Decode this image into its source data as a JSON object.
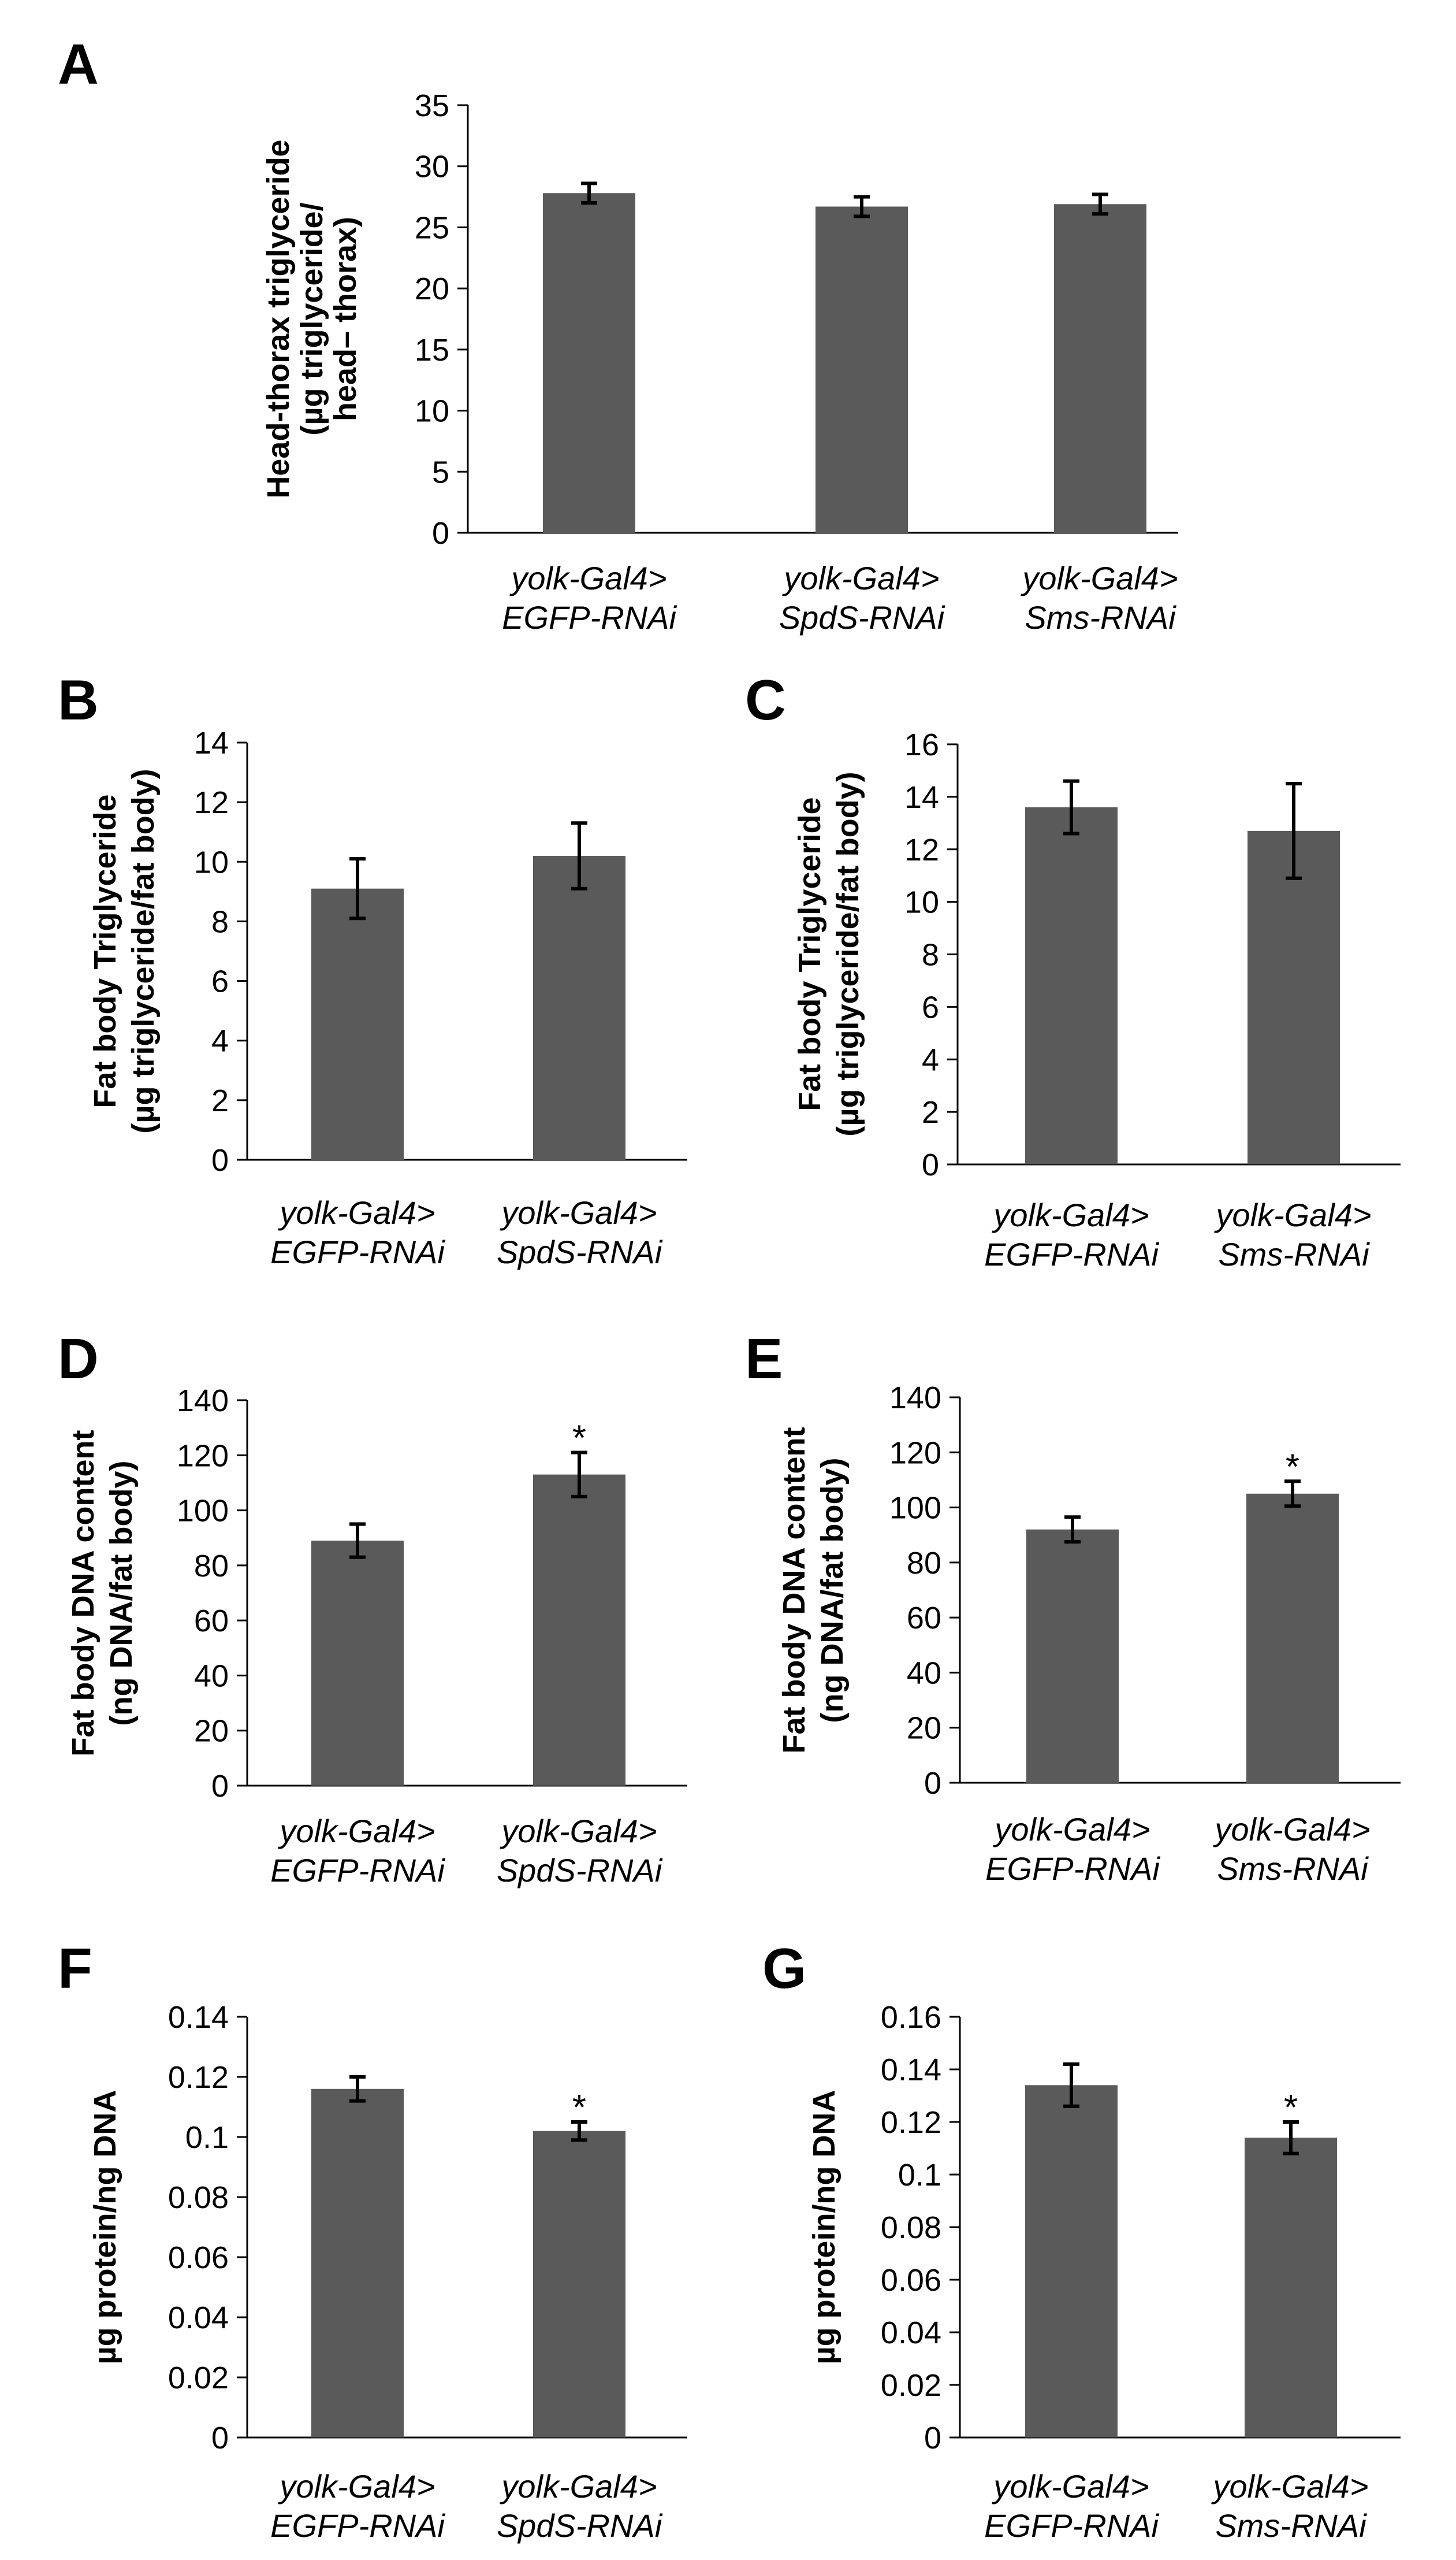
{
  "colors": {
    "bar": "#5a5a5a",
    "axis": "#000000",
    "background": "#ffffff"
  },
  "chart_data": [
    {
      "panel": "A",
      "type": "bar",
      "ylabel": [
        "Head-thorax triglyceride",
        "(µg triglyceride/",
        "head– thorax)"
      ],
      "ylim": [
        0,
        35
      ],
      "yticks": [
        "0",
        "5",
        "10",
        "15",
        "20",
        "25",
        "30",
        "35"
      ],
      "categories": [
        [
          "yolk-Gal4>",
          "EGFP-RNAi"
        ],
        [
          "yolk-Gal4>",
          "SpdS-RNAi"
        ],
        [
          "yolk-Gal4>",
          "Sms-RNAi"
        ]
      ],
      "values": [
        27.8,
        26.7,
        26.9
      ],
      "errors": [
        0.8,
        0.8,
        0.8
      ],
      "annotations": [
        "",
        "",
        ""
      ]
    },
    {
      "panel": "B",
      "type": "bar",
      "ylabel": [
        "Fat body Triglyceride",
        "(µg triglyceride/fat body)"
      ],
      "ylim": [
        0,
        14
      ],
      "yticks": [
        "0",
        "2",
        "4",
        "6",
        "8",
        "10",
        "12",
        "14"
      ],
      "categories": [
        [
          "yolk-Gal4>",
          "EGFP-RNAi"
        ],
        [
          "yolk-Gal4>",
          "SpdS-RNAi"
        ]
      ],
      "values": [
        9.1,
        10.2
      ],
      "errors": [
        1.0,
        1.1
      ],
      "annotations": [
        "",
        ""
      ]
    },
    {
      "panel": "C",
      "type": "bar",
      "ylabel": [
        "Fat body Triglyceride",
        "(µg triglyceride/fat body)"
      ],
      "ylim": [
        0,
        16
      ],
      "yticks": [
        "0",
        "2",
        "4",
        "6",
        "8",
        "10",
        "12",
        "14",
        "16"
      ],
      "categories": [
        [
          "yolk-Gal4>",
          "EGFP-RNAi"
        ],
        [
          "yolk-Gal4>",
          "Sms-RNAi"
        ]
      ],
      "values": [
        13.6,
        12.7
      ],
      "errors": [
        1.0,
        1.8
      ],
      "annotations": [
        "",
        ""
      ]
    },
    {
      "panel": "D",
      "type": "bar",
      "ylabel": [
        "Fat body DNA content",
        "(ng DNA/fat body)"
      ],
      "ylim": [
        0,
        140
      ],
      "yticks": [
        "0",
        "20",
        "40",
        "60",
        "80",
        "100",
        "120",
        "140"
      ],
      "categories": [
        [
          "yolk-Gal4>",
          "EGFP-RNAi"
        ],
        [
          "yolk-Gal4>",
          "SpdS-RNAi"
        ]
      ],
      "values": [
        89,
        113
      ],
      "errors": [
        6,
        8
      ],
      "annotations": [
        "",
        "*"
      ]
    },
    {
      "panel": "E",
      "type": "bar",
      "ylabel": [
        "Fat body DNA content",
        "(ng DNA/fat body)"
      ],
      "ylim": [
        0,
        140
      ],
      "yticks": [
        "0",
        "20",
        "40",
        "60",
        "80",
        "100",
        "120",
        "140"
      ],
      "categories": [
        [
          "yolk-Gal4>",
          "EGFP-RNAi"
        ],
        [
          "yolk-Gal4>",
          "Sms-RNAi"
        ]
      ],
      "values": [
        92,
        105
      ],
      "errors": [
        4.5,
        4.5
      ],
      "annotations": [
        "",
        "*"
      ]
    },
    {
      "panel": "F",
      "type": "bar",
      "ylabel": [
        "µg protein/ng DNA"
      ],
      "ylim": [
        0,
        0.14
      ],
      "yticks": [
        "0",
        "0.02",
        "0.04",
        "0.06",
        "0.08",
        "0.1",
        "0.12",
        "0.14"
      ],
      "categories": [
        [
          "yolk-Gal4>",
          "EGFP-RNAi"
        ],
        [
          "yolk-Gal4>",
          "SpdS-RNAi"
        ]
      ],
      "values": [
        0.116,
        0.102
      ],
      "errors": [
        0.004,
        0.003
      ],
      "annotations": [
        "",
        "*"
      ]
    },
    {
      "panel": "G",
      "type": "bar",
      "ylabel": [
        "µg protein/ng DNA"
      ],
      "ylim": [
        0,
        0.16
      ],
      "yticks": [
        "0",
        "0.02",
        "0.04",
        "0.06",
        "0.08",
        "0.1",
        "0.12",
        "0.14",
        "0.16"
      ],
      "categories": [
        [
          "yolk-Gal4>",
          "EGFP-RNAi"
        ],
        [
          "yolk-Gal4>",
          "Sms-RNAi"
        ]
      ],
      "values": [
        0.134,
        0.114
      ],
      "errors": [
        0.008,
        0.006
      ],
      "annotations": [
        "",
        "*"
      ]
    }
  ]
}
